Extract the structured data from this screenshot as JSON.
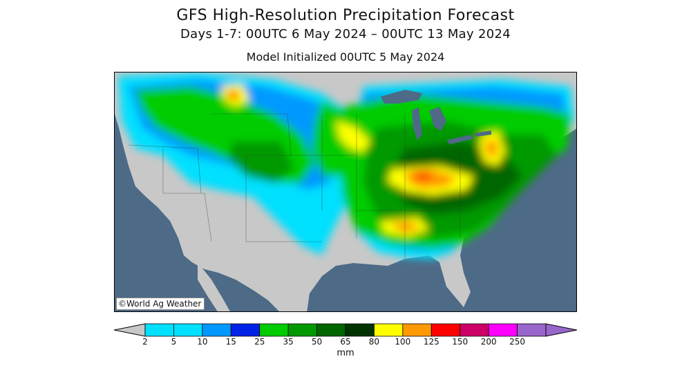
{
  "header": {
    "title": "GFS High-Resolution Precipitation Forecast",
    "subtitle": "Days 1-7: 00UTC 6 May 2024 – 00UTC 13 May 2024",
    "init": "Model Initialized 00UTC 5 May 2024"
  },
  "map": {
    "credit": "©World Ag Weather",
    "colors": {
      "ocean": "#4d6a87",
      "land_dry": "#c8c8c8",
      "lakes": "#4d6a87"
    }
  },
  "legend": {
    "unit": "mm",
    "bins": [
      {
        "label": "2",
        "color": "#c8c8c8"
      },
      {
        "label": "5",
        "color": "#00e0ff"
      },
      {
        "label": "10",
        "color": "#0099ff"
      },
      {
        "label": "15",
        "color": "#0022e6"
      },
      {
        "label": "25",
        "color": "#00cc00"
      },
      {
        "label": "35",
        "color": "#009900"
      },
      {
        "label": "50",
        "color": "#006600"
      },
      {
        "label": "65",
        "color": "#003300"
      },
      {
        "label": "80",
        "color": "#ffff00"
      },
      {
        "label": "100",
        "color": "#ff9900"
      },
      {
        "label": "125",
        "color": "#ff0000"
      },
      {
        "label": "150",
        "color": "#cc0066"
      },
      {
        "label": "200",
        "color": "#ff00ff"
      },
      {
        "label": "250",
        "color": "#9966cc"
      }
    ],
    "last_color": "#9966cc"
  }
}
